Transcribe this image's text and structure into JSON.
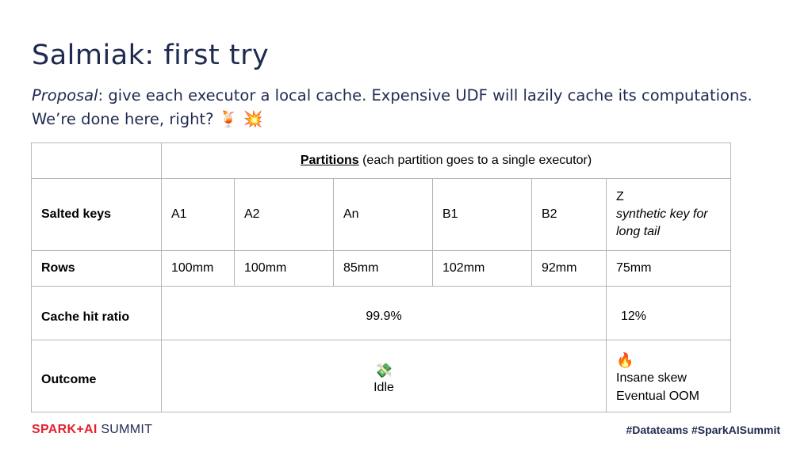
{
  "title": "Salmiak: first try",
  "subtitle": {
    "italic": "Proposal",
    "text": ": give each executor a local cache. Expensive UDF will lazily cache its computations.  We’re done here, right?",
    "emoji_1": "🍹",
    "emoji_2": "💥"
  },
  "table": {
    "header_bold": "Partitions",
    "header_rest": " (each partition goes to a single executor)",
    "row_labels": {
      "salted_keys": "Salted keys",
      "rows": "Rows",
      "cache_hit_ratio": "Cache hit ratio",
      "outcome": "Outcome"
    },
    "salted_keys": [
      "A1",
      "A2",
      "An",
      "B1",
      "B2",
      "Z"
    ],
    "z_note": "synthetic key for long tail",
    "rows": [
      "100mm",
      "100mm",
      "85mm",
      "102mm",
      "92mm",
      "75mm"
    ],
    "cache_hit_main": "99.9%",
    "cache_hit_z": "12%",
    "outcome_main_emoji": "💸",
    "outcome_main": "Idle",
    "outcome_z_emoji": "🔥",
    "outcome_z_line1": "Insane skew",
    "outcome_z_line2": "Eventual OOM"
  },
  "footer": {
    "brand_bold": "SPARK+AI",
    "brand_light": " SUMMIT",
    "hashtags": "#Datateams  #SparkAISummit"
  },
  "colors": {
    "title": "#1f2a4f",
    "brand_red": "#e4222f",
    "border": "#b5b5b5"
  }
}
